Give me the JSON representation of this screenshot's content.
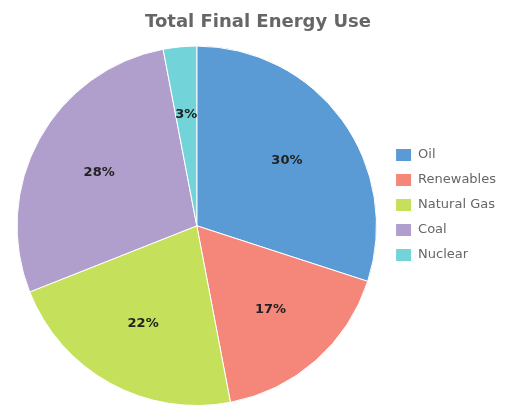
{
  "chart_data": {
    "type": "pie",
    "title": "Total Final Energy Use",
    "categories": [
      "Oil",
      "Renewables",
      "Natural Gas",
      "Coal",
      "Nuclear"
    ],
    "values": [
      30,
      17,
      22,
      28,
      3
    ],
    "value_labels": [
      "30%",
      "17%",
      "22%",
      "28%",
      "3%"
    ],
    "colors": [
      "#5B9BD5",
      "#F4877A",
      "#C5E05A",
      "#B09FCC",
      "#72D4D9"
    ],
    "legend": "right",
    "data_labels": true
  }
}
